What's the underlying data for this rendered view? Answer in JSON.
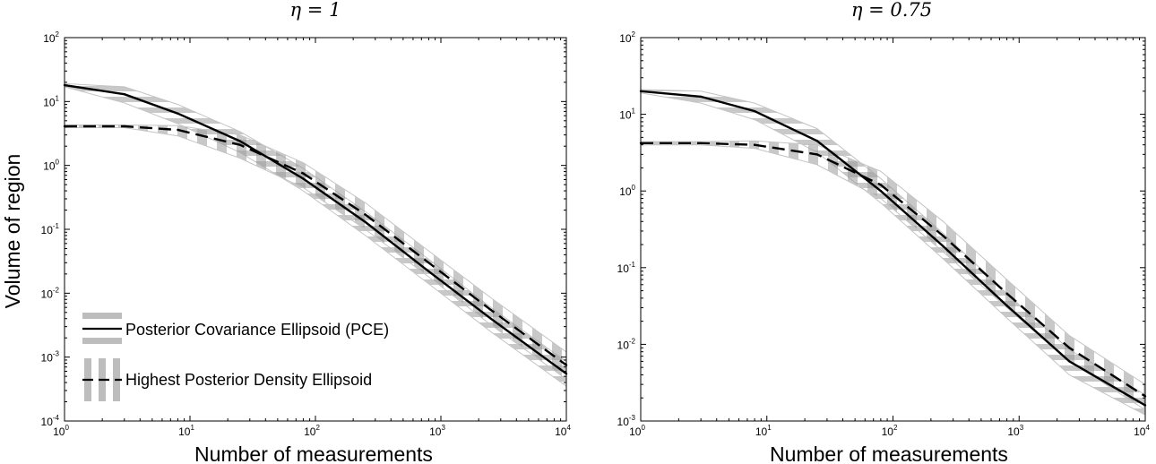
{
  "figure": {
    "ylabel": "Volume of region"
  },
  "chart_data": [
    {
      "type": "line",
      "title": "η = 1",
      "xlabel": "Number of measurements",
      "ylabel": "Volume of region",
      "xscale": "log",
      "yscale": "log",
      "xlim": [
        1,
        10000
      ],
      "ylim": [
        0.0001,
        100
      ],
      "grid": false,
      "legend": "bottom-left",
      "x_ticks": [
        {
          "base": "10",
          "exp": "0"
        },
        {
          "base": "10",
          "exp": "1"
        },
        {
          "base": "10",
          "exp": "2"
        },
        {
          "base": "10",
          "exp": "3"
        },
        {
          "base": "10",
          "exp": "4"
        }
      ],
      "y_ticks": [
        {
          "base": "10",
          "exp": "-4"
        },
        {
          "base": "10",
          "exp": "-3"
        },
        {
          "base": "10",
          "exp": "-2"
        },
        {
          "base": "10",
          "exp": "-1"
        },
        {
          "base": "10",
          "exp": "0"
        },
        {
          "base": "10",
          "exp": "1"
        },
        {
          "base": "10",
          "exp": "2"
        }
      ],
      "x": [
        1,
        3,
        8,
        25,
        80,
        250,
        800,
        2500,
        10000
      ],
      "series": [
        {
          "name": "Posterior Covariance Ellipsoid (PCE)",
          "style": "solid",
          "band": "horizontal",
          "values": [
            18,
            13,
            6.5,
            2.4,
            0.62,
            0.13,
            0.022,
            0.004,
            0.00055
          ],
          "band_lower": [
            17,
            9.5,
            4.5,
            1.6,
            0.4,
            0.08,
            0.014,
            0.0025,
            0.00035
          ],
          "band_upper": [
            19,
            17,
            9,
            3.4,
            0.9,
            0.19,
            0.034,
            0.006,
            0.00085
          ]
        },
        {
          "name": "Highest Posterior Density Ellipsoid",
          "style": "dashed",
          "band": "vertical",
          "values": [
            4.1,
            4.1,
            3.6,
            2.1,
            0.75,
            0.17,
            0.03,
            0.0055,
            0.00075
          ],
          "band_lower": [
            3.9,
            3.9,
            2.9,
            1.3,
            0.45,
            0.1,
            0.018,
            0.0032,
            0.00045
          ],
          "band_upper": [
            4.3,
            4.3,
            4.2,
            3.0,
            1.1,
            0.26,
            0.046,
            0.0085,
            0.0012
          ]
        }
      ]
    },
    {
      "type": "line",
      "title": "η = 0.75",
      "xlabel": "Number of measurements",
      "ylabel": "",
      "xscale": "log",
      "yscale": "log",
      "xlim": [
        1,
        10000
      ],
      "ylim": [
        0.001,
        100
      ],
      "grid": false,
      "legend": "none",
      "x_ticks": [
        {
          "base": "10",
          "exp": "0"
        },
        {
          "base": "10",
          "exp": "1"
        },
        {
          "base": "10",
          "exp": "2"
        },
        {
          "base": "10",
          "exp": "3"
        },
        {
          "base": "10",
          "exp": "4"
        }
      ],
      "y_ticks": [
        {
          "base": "10",
          "exp": "-3"
        },
        {
          "base": "10",
          "exp": "-2"
        },
        {
          "base": "10",
          "exp": "-1"
        },
        {
          "base": "10",
          "exp": "0"
        },
        {
          "base": "10",
          "exp": "1"
        },
        {
          "base": "10",
          "exp": "2"
        }
      ],
      "x": [
        1,
        3,
        8,
        25,
        80,
        250,
        800,
        2500,
        10000
      ],
      "series": [
        {
          "name": "Posterior Covariance Ellipsoid (PCE)",
          "style": "solid",
          "band": "horizontal",
          "values": [
            20,
            17,
            11,
            4.5,
            1.0,
            0.19,
            0.032,
            0.006,
            0.0016
          ],
          "band_lower": [
            19,
            14,
            8.5,
            3.2,
            0.7,
            0.13,
            0.022,
            0.004,
            0.0012
          ],
          "band_upper": [
            21,
            20,
            14,
            6.5,
            1.45,
            0.28,
            0.046,
            0.0085,
            0.0022
          ]
        },
        {
          "name": "Highest Posterior Density Ellipsoid",
          "style": "dashed",
          "band": "vertical",
          "values": [
            4.2,
            4.2,
            4.0,
            3.0,
            1.2,
            0.26,
            0.046,
            0.009,
            0.0021
          ],
          "band_lower": [
            4.0,
            4.0,
            3.6,
            2.2,
            0.8,
            0.16,
            0.03,
            0.006,
            0.0014
          ],
          "band_upper": [
            4.4,
            4.4,
            4.5,
            4.0,
            1.8,
            0.4,
            0.07,
            0.013,
            0.003
          ]
        }
      ]
    }
  ],
  "legend": {
    "pce_label": "Posterior Covariance Ellipsoid (PCE)",
    "hpd_label": "Highest Posterior Density Ellipsoid"
  }
}
